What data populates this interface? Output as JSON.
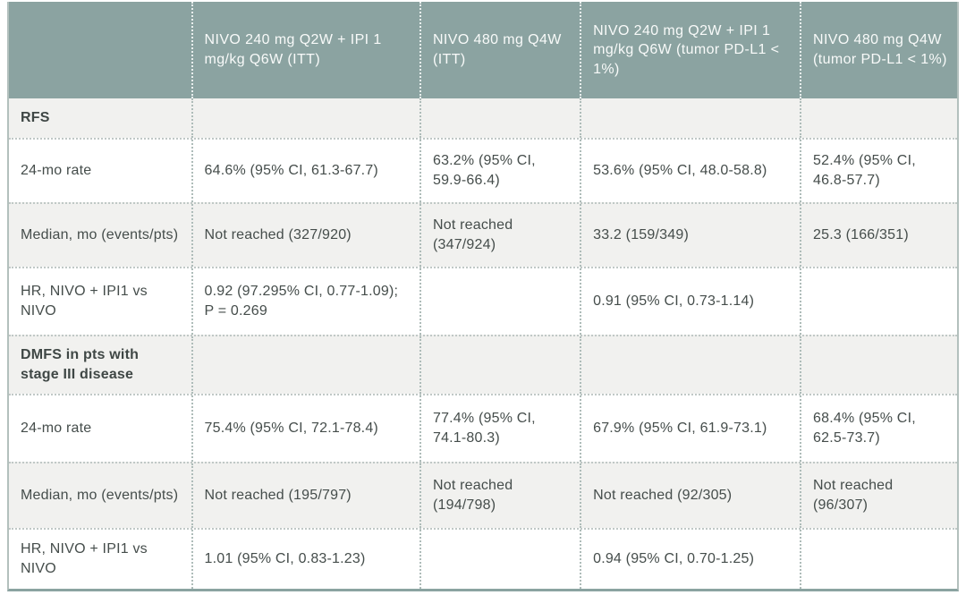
{
  "colors": {
    "header_bg": "#8ba3a1",
    "header_text": "#f8faf9",
    "section_row_bg": "#f1f1ef",
    "body_row_bg": "#ffffff",
    "body_text": "#454d4b",
    "outer_border": "#b3c0bd",
    "bottom_border": "#8ba3a1",
    "vertical_dots_body": "#aebcb9",
    "vertical_dots_header": "#e9efee",
    "horizontal_dots": "#c0c8c6"
  },
  "table": {
    "header": [
      "",
      "NIVO 240 mg Q2W + IPI 1 mg/kg Q6W (ITT)",
      "NIVO 480 mg Q4W (ITT)",
      "NIVO 240 mg Q2W + IPI 1 mg/kg Q6W (tumor PD-L1 < 1%)",
      "NIVO 480 mg Q4W (tumor PD-L1 < 1%)"
    ],
    "rows": [
      {
        "type": "section",
        "label": "RFS",
        "values": [
          "",
          "",
          "",
          ""
        ]
      },
      {
        "type": "data",
        "label": "24-mo rate",
        "values": [
          "64.6% (95% CI, 61.3-67.7)",
          "63.2% (95% CI, 59.9-66.4)",
          "53.6% (95% CI, 48.0-58.8)",
          "52.4% (95% CI, 46.8-57.7)"
        ]
      },
      {
        "type": "data",
        "label": "Median, mo (events/pts)",
        "values": [
          "Not reached (327/920)",
          "Not reached (347/924)",
          "33.2 (159/349)",
          "25.3 (166/351)"
        ]
      },
      {
        "type": "data",
        "label": "HR, NIVO + IPI1 vs NIVO",
        "values": [
          "0.92 (97.295% CI, 0.77-1.09); P = 0.269",
          "",
          "0.91 (95% CI, 0.73-1.14)",
          ""
        ]
      },
      {
        "type": "section",
        "label": "DMFS in pts with stage III disease",
        "values": [
          "",
          "",
          "",
          ""
        ]
      },
      {
        "type": "data",
        "label": "24-mo rate",
        "values": [
          "75.4% (95% CI, 72.1-78.4)",
          "77.4% (95% CI, 74.1-80.3)",
          "67.9% (95% CI, 61.9-73.1)",
          "68.4% (95% CI, 62.5-73.7)"
        ]
      },
      {
        "type": "data",
        "label": "Median, mo (events/pts)",
        "values": [
          "Not reached (195/797)",
          "Not reached (194/798)",
          "Not reached (92/305)",
          "Not reached (96/307)"
        ]
      },
      {
        "type": "data",
        "label": "HR, NIVO + IPI1 vs NIVO",
        "values": [
          "1.01 (95% CI, 0.83-1.23)",
          "",
          "0.94 (95% CI, 0.70-1.25)",
          ""
        ]
      }
    ]
  }
}
